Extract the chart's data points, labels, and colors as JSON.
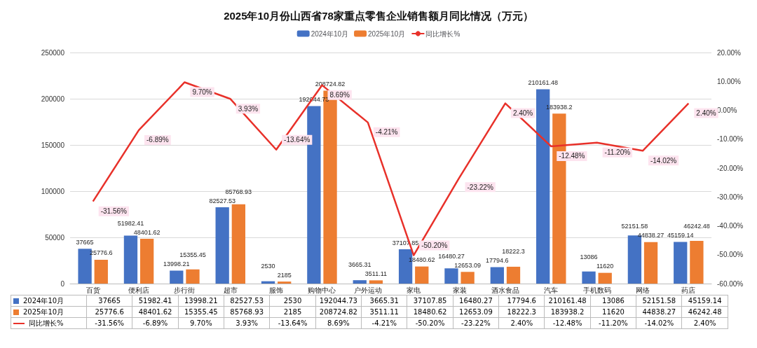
{
  "chart_data": {
    "type": "bar",
    "title": "2025年10月份山西省78家重点零售企业销售额月同比情况（万元）",
    "categories": [
      "百货",
      "便利店",
      "步行街",
      "超市",
      "服饰",
      "购物中心",
      "户外运动",
      "家电",
      "家装",
      "酒水食品",
      "汽车",
      "手机数码",
      "网络",
      "药店"
    ],
    "series": [
      {
        "name": "2024年10月",
        "color": "#4472c4",
        "values": [
          37665,
          51982.41,
          13998.21,
          82527.53,
          2530,
          192044.73,
          3665.31,
          37107.85,
          16480.27,
          17794.6,
          210161.48,
          13086,
          52151.58,
          45159.14
        ],
        "value_labels": [
          "37665",
          "51982.41",
          "13998.21",
          "82527.53",
          "2530",
          "192044.73",
          "3665.31",
          "37107.85",
          "16480.27",
          "17794.6",
          "210161.48",
          "13086",
          "52151.58",
          "45159.14"
        ]
      },
      {
        "name": "2025年10月",
        "color": "#ed7d31",
        "values": [
          25776.6,
          48401.62,
          15355.45,
          85768.93,
          2185,
          208724.82,
          3511.11,
          18480.62,
          12653.09,
          18222.3,
          183938.2,
          11620,
          44838.27,
          46242.48
        ],
        "value_labels": [
          "25776.6",
          "48401.62",
          "15355.45",
          "85768.93",
          "2185",
          "208724.82",
          "3511.11",
          "18480.62",
          "12653.09",
          "18222.3",
          "183938.2",
          "11620",
          "44838.27",
          "46242.48"
        ]
      },
      {
        "name": "同比增长%",
        "type": "line",
        "axis": "y2",
        "color": "#e8312a",
        "values": [
          -31.56,
          -6.89,
          9.7,
          3.93,
          -13.64,
          8.69,
          -4.21,
          -50.2,
          -23.22,
          2.4,
          -12.48,
          -11.2,
          -14.02,
          2.4
        ],
        "value_labels": [
          "-31.56%",
          "-6.89%",
          "9.70%",
          "3.93%",
          "-13.64%",
          "8.69%",
          "-4.21%",
          "-50.20%",
          "-23.22%",
          "2.40%",
          "-12.48%",
          "-11.20%",
          "-14.02%",
          "2.40%"
        ]
      }
    ],
    "ylim": [
      0,
      250000
    ],
    "yticks": [
      0,
      50000,
      100000,
      150000,
      200000,
      250000
    ],
    "y2lim": [
      -60,
      20
    ],
    "y2ticks": [
      {
        "value": -60,
        "label": "-60.00%"
      },
      {
        "value": -50,
        "label": "-50.00%"
      },
      {
        "value": -40,
        "label": "-40.00%"
      },
      {
        "value": -30,
        "label": "-30.00%"
      },
      {
        "value": -20,
        "label": "-20.00%"
      },
      {
        "value": -10,
        "label": "-10.00%"
      },
      {
        "value": 0,
        "label": "0.00%"
      },
      {
        "value": 10,
        "label": "10.00%"
      },
      {
        "value": 20,
        "label": "20.00%"
      }
    ],
    "grid": "y",
    "legend": "top",
    "marker": "none",
    "line_style": "solid"
  }
}
